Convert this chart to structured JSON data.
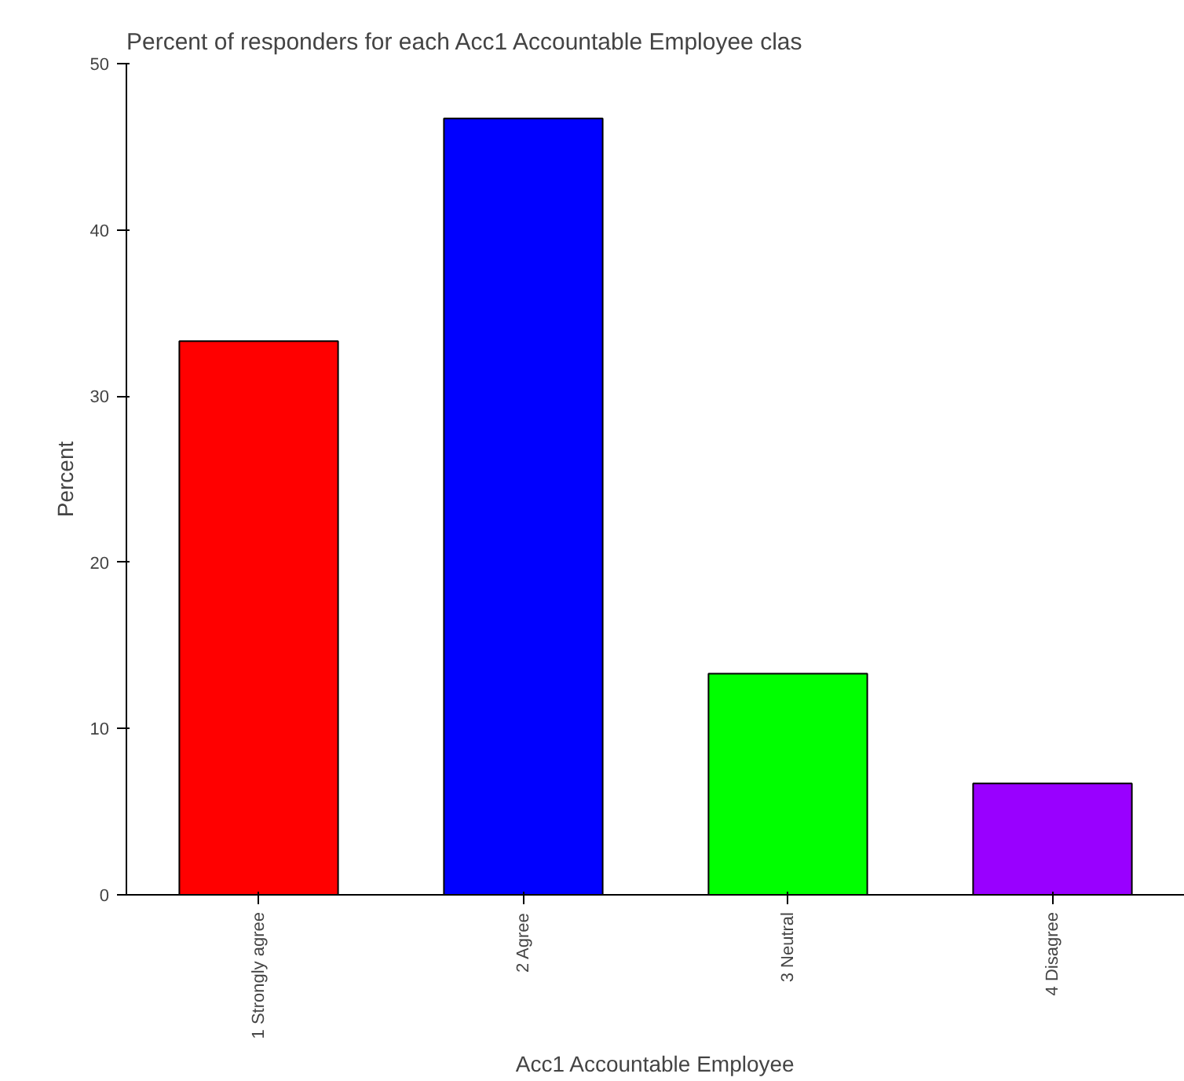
{
  "chart_data": {
    "type": "bar",
    "title": "Percent of responders for each Acc1 Accountable Employee clas",
    "xlabel": "Acc1 Accountable Employee",
    "ylabel": "Percent",
    "categories": [
      "1 Strongly agree",
      "2 Agree",
      "3 Neutral",
      "4 Disagree"
    ],
    "values": [
      33.3,
      46.7,
      13.3,
      6.7
    ],
    "colors": [
      "#ff0000",
      "#0000ff",
      "#00ff00",
      "#9900ff"
    ],
    "ylim": [
      0,
      50
    ],
    "yticks": [
      0,
      10,
      20,
      30,
      40,
      50
    ],
    "grid": false
  }
}
